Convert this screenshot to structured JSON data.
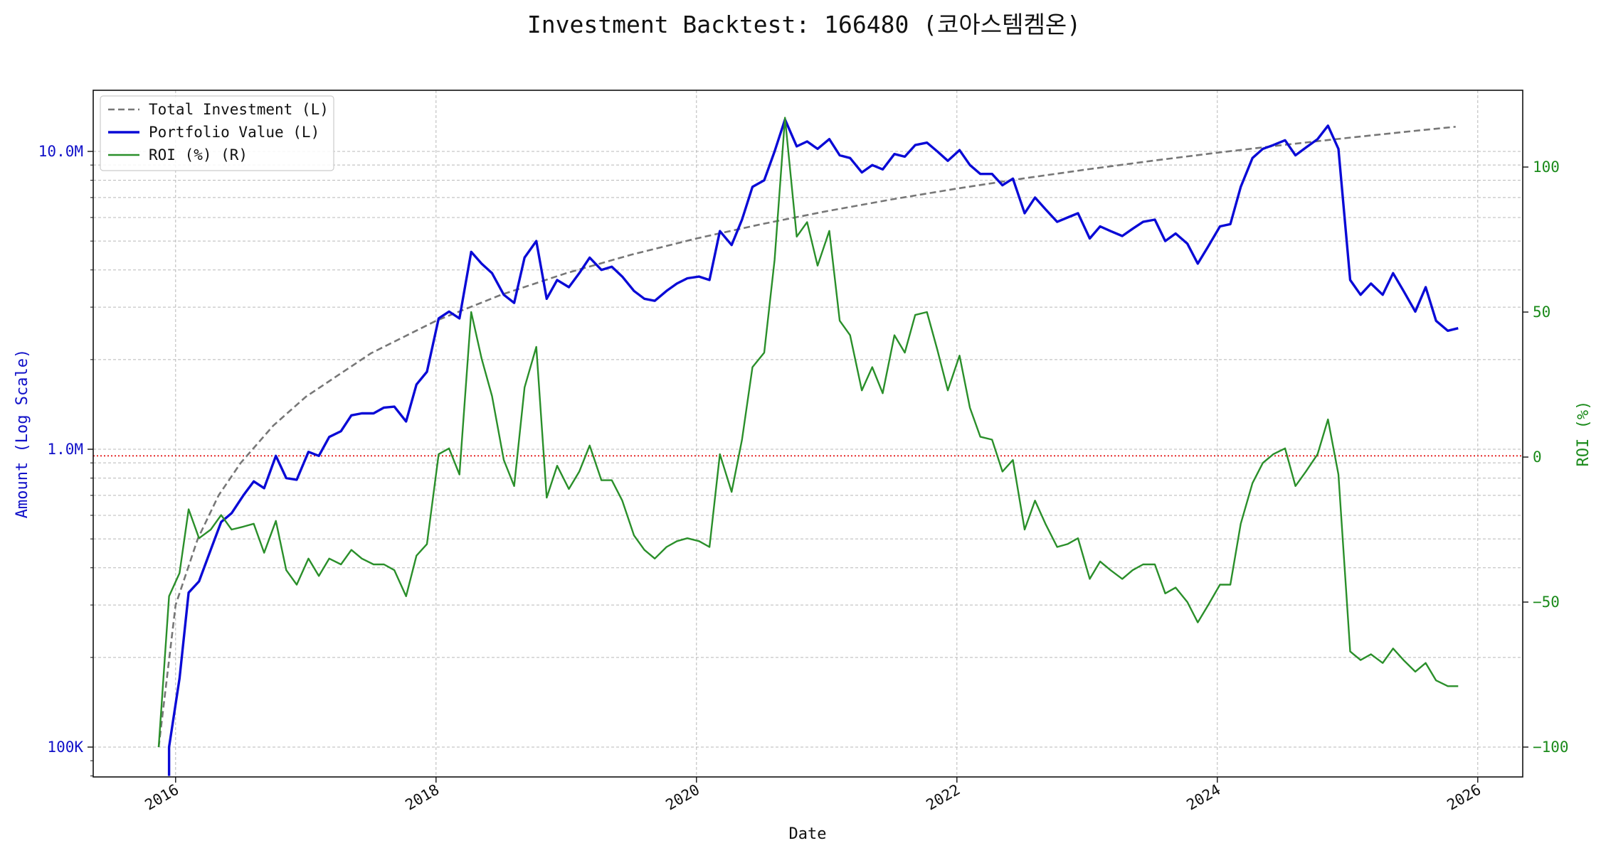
{
  "chart_data": {
    "type": "line",
    "title": "Investment Backtest: 166480 (코아스템켐온)",
    "xlabel": "Date",
    "ylabel_left": "Amount (Log Scale)",
    "ylabel_right": "ROI (%)",
    "x_ticks": [
      "2016",
      "2018",
      "2020",
      "2022",
      "2024",
      "2026"
    ],
    "left_ticks": [
      {
        "value": 100000,
        "label": "100K"
      },
      {
        "value": 1000000,
        "label": "1.0M"
      },
      {
        "value": 10000000,
        "label": "10.0M"
      }
    ],
    "right_ticks": [
      {
        "value": -100,
        "label": "−100"
      },
      {
        "value": -50,
        "label": "−50"
      },
      {
        "value": 0,
        "label": "0"
      },
      {
        "value": 50,
        "label": "50"
      },
      {
        "value": 100,
        "label": "100"
      }
    ],
    "left_scale": "log",
    "left_ylim": [
      80000,
      15000000
    ],
    "right_ylim": [
      -111,
      126
    ],
    "xlim": [
      2015.35,
      2026.4
    ],
    "grid": true,
    "legend_position": "top-left",
    "reference_line": {
      "axis": "left",
      "value": 950000,
      "style": "dotted",
      "color": "#e00000"
    },
    "colors": {
      "total": "#777777",
      "portfolio": "#0a0ad6",
      "roi": "#2a8f2a",
      "left_axis": "#1010c8",
      "right_axis": "#1a8a1a"
    },
    "series": [
      {
        "name": "Total Investment (L)",
        "axis": "left",
        "style": "dashed",
        "x": [
          2015.87,
          2016.0,
          2016.17,
          2016.33,
          2016.5,
          2016.75,
          2017.0,
          2017.5,
          2018.0,
          2018.5,
          2019.0,
          2019.5,
          2020.0,
          2020.5,
          2021.0,
          2021.5,
          2022.0,
          2022.5,
          2023.0,
          2023.5,
          2024.0,
          2024.5,
          2025.0,
          2025.5,
          2025.83
        ],
        "y": [
          100000,
          300000,
          500000,
          700000,
          900000,
          1200000,
          1500000,
          2100000,
          2700000,
          3300000,
          3900000,
          4500000,
          5100000,
          5700000,
          6300000,
          6900000,
          7500000,
          8100000,
          8700000,
          9300000,
          9900000,
          10500000,
          11100000,
          11700000,
          12100000
        ]
      },
      {
        "name": "Portfolio Value (L)",
        "axis": "left",
        "style": "solid",
        "x": [
          2015.95,
          2015.95,
          2016.03,
          2016.1,
          2016.18,
          2016.27,
          2016.35,
          2016.43,
          2016.52,
          2016.6,
          2016.68,
          2016.77,
          2016.85,
          2016.93,
          2017.02,
          2017.1,
          2017.18,
          2017.27,
          2017.35,
          2017.43,
          2017.52,
          2017.6,
          2017.68,
          2017.77,
          2017.85,
          2017.93,
          2018.02,
          2018.1,
          2018.18,
          2018.27,
          2018.35,
          2018.43,
          2018.52,
          2018.6,
          2018.68,
          2018.77,
          2018.85,
          2018.93,
          2019.02,
          2019.1,
          2019.18,
          2019.27,
          2019.35,
          2019.43,
          2019.52,
          2019.6,
          2019.68,
          2019.77,
          2019.85,
          2019.93,
          2020.02,
          2020.1,
          2020.18,
          2020.27,
          2020.35,
          2020.43,
          2020.52,
          2020.6,
          2020.68,
          2020.77,
          2020.85,
          2020.93,
          2021.02,
          2021.1,
          2021.18,
          2021.27,
          2021.35,
          2021.43,
          2021.52,
          2021.6,
          2021.68,
          2021.77,
          2021.85,
          2021.93,
          2022.02,
          2022.1,
          2022.18,
          2022.27,
          2022.35,
          2022.43,
          2022.52,
          2022.6,
          2022.68,
          2022.77,
          2022.85,
          2022.93,
          2023.02,
          2023.1,
          2023.18,
          2023.27,
          2023.35,
          2023.43,
          2023.52,
          2023.6,
          2023.68,
          2023.77,
          2023.85,
          2023.93,
          2024.02,
          2024.1,
          2024.18,
          2024.27,
          2024.35,
          2024.43,
          2024.52,
          2024.6,
          2024.68,
          2024.77,
          2024.85,
          2024.93,
          2025.02,
          2025.1,
          2025.18,
          2025.27,
          2025.35,
          2025.43,
          2025.52,
          2025.6,
          2025.68,
          2025.77,
          2025.85
        ],
        "y": [
          80000,
          100000,
          170000,
          330000,
          360000,
          460000,
          570000,
          610000,
          700000,
          780000,
          740000,
          950000,
          800000,
          790000,
          980000,
          950000,
          1100000,
          1150000,
          1300000,
          1320000,
          1320000,
          1380000,
          1390000,
          1240000,
          1650000,
          1820000,
          2750000,
          2900000,
          2750000,
          4600000,
          4200000,
          3900000,
          3300000,
          3100000,
          4400000,
          5000000,
          3200000,
          3700000,
          3500000,
          3900000,
          4400000,
          4000000,
          4100000,
          3800000,
          3400000,
          3200000,
          3150000,
          3400000,
          3600000,
          3750000,
          3800000,
          3700000,
          5400000,
          4850000,
          5900000,
          7600000,
          8000000,
          10000000,
          12800000,
          10400000,
          10800000,
          10200000,
          11000000,
          9700000,
          9500000,
          8500000,
          9000000,
          8700000,
          9800000,
          9600000,
          10500000,
          10700000,
          10000000,
          9300000,
          10100000,
          9000000,
          8400000,
          8400000,
          7700000,
          8100000,
          6200000,
          7000000,
          6400000,
          5800000,
          6000000,
          6200000,
          5100000,
          5600000,
          5400000,
          5200000,
          5500000,
          5800000,
          5900000,
          5000000,
          5300000,
          4900000,
          4200000,
          4800000,
          5600000,
          5700000,
          7600000,
          9500000,
          10200000,
          10500000,
          10900000,
          9700000,
          10300000,
          11000000,
          12200000,
          10200000,
          3700000,
          3300000,
          3600000,
          3300000,
          3900000,
          3400000,
          2900000,
          3500000,
          2700000,
          2500000,
          2550000
        ]
      },
      {
        "name": "ROI (%) (R)",
        "axis": "right",
        "style": "solid",
        "x": [
          2015.87,
          2015.95,
          2016.03,
          2016.1,
          2016.18,
          2016.27,
          2016.35,
          2016.43,
          2016.52,
          2016.6,
          2016.68,
          2016.77,
          2016.85,
          2016.93,
          2017.02,
          2017.1,
          2017.18,
          2017.27,
          2017.35,
          2017.43,
          2017.52,
          2017.6,
          2017.68,
          2017.77,
          2017.85,
          2017.93,
          2018.02,
          2018.1,
          2018.18,
          2018.27,
          2018.35,
          2018.43,
          2018.52,
          2018.6,
          2018.68,
          2018.77,
          2018.85,
          2018.93,
          2019.02,
          2019.1,
          2019.18,
          2019.27,
          2019.35,
          2019.43,
          2019.52,
          2019.6,
          2019.68,
          2019.77,
          2019.85,
          2019.93,
          2020.02,
          2020.1,
          2020.18,
          2020.27,
          2020.35,
          2020.43,
          2020.52,
          2020.6,
          2020.68,
          2020.77,
          2020.85,
          2020.93,
          2021.02,
          2021.1,
          2021.18,
          2021.27,
          2021.35,
          2021.43,
          2021.52,
          2021.6,
          2021.68,
          2021.77,
          2021.85,
          2021.93,
          2022.02,
          2022.1,
          2022.18,
          2022.27,
          2022.35,
          2022.43,
          2022.52,
          2022.6,
          2022.68,
          2022.77,
          2022.85,
          2022.93,
          2023.02,
          2023.1,
          2023.18,
          2023.27,
          2023.35,
          2023.43,
          2023.52,
          2023.6,
          2023.68,
          2023.77,
          2023.85,
          2023.93,
          2024.02,
          2024.1,
          2024.18,
          2024.27,
          2024.35,
          2024.43,
          2024.52,
          2024.6,
          2024.68,
          2024.77,
          2024.85,
          2024.93,
          2025.02,
          2025.1,
          2025.18,
          2025.27,
          2025.35,
          2025.43,
          2025.52,
          2025.6,
          2025.68,
          2025.77,
          2025.85
        ],
        "y": [
          -100,
          -48,
          -40,
          -18,
          -28,
          -25,
          -20,
          -25,
          -24,
          -23,
          -33,
          -22,
          -39,
          -44,
          -35,
          -41,
          -35,
          -37,
          -32,
          -35,
          -37,
          -37,
          -39,
          -48,
          -34,
          -30,
          1,
          3,
          -6,
          50,
          34,
          21,
          -1,
          -10,
          24,
          38,
          -14,
          -3,
          -11,
          -5,
          4,
          -8,
          -8,
          -15,
          -27,
          -32,
          -35,
          -31,
          -29,
          -28,
          -29,
          -31,
          1,
          -12,
          6,
          31,
          36,
          68,
          117,
          76,
          81,
          66,
          78,
          47,
          42,
          23,
          31,
          22,
          42,
          36,
          49,
          50,
          37,
          23,
          35,
          17,
          7,
          6,
          -5,
          -1,
          -25,
          -15,
          -23,
          -31,
          -30,
          -28,
          -42,
          -36,
          -39,
          -42,
          -39,
          -37,
          -37,
          -47,
          -45,
          -50,
          -57,
          -51,
          -44,
          -44,
          -23,
          -9,
          -2,
          1,
          3,
          -10,
          -5,
          1,
          13,
          -6,
          -67,
          -70,
          -68,
          -71,
          -66,
          -70,
          -74,
          -71,
          -77,
          -79,
          -79
        ]
      }
    ]
  }
}
